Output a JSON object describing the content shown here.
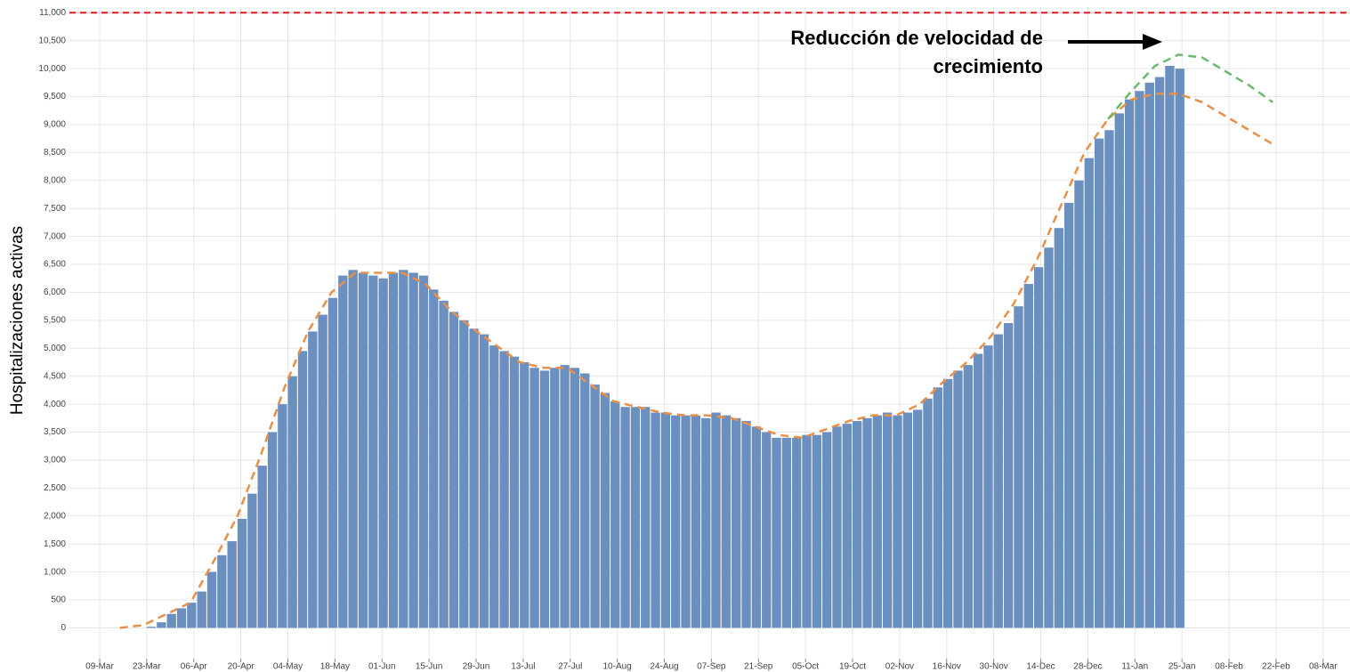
{
  "chart_data": {
    "type": "bar",
    "ylabel": "Hospitalizaciones activas",
    "annotation": [
      "Reducción de velocidad de",
      "crecimiento"
    ],
    "color": "#6b8fbf",
    "grid": true,
    "xlim": [
      "29-Feb",
      "16-Mar"
    ],
    "ylim": [
      -550,
      11100
    ],
    "xticks": [
      "09-Mar",
      "23-Mar",
      "06-Apr",
      "20-Apr",
      "04-May",
      "18-May",
      "01-Jun",
      "15-Jun",
      "29-Jun",
      "13-Jul",
      "27-Jul",
      "10-Aug",
      "24-Aug",
      "07-Sep",
      "21-Sep",
      "05-Oct",
      "19-Oct",
      "02-Nov",
      "16-Nov",
      "30-Nov",
      "14-Dec",
      "28-Dec",
      "11-Jan",
      "25-Jan",
      "08-Feb",
      "22-Feb",
      "08-Mar"
    ],
    "yticks": [
      0,
      500,
      {
        "value": 1000,
        "label": "1,000"
      },
      {
        "value": 1500,
        "label": "1,500"
      },
      {
        "value": 2000,
        "label": "2,000"
      },
      {
        "value": 2500,
        "label": "2,500"
      },
      {
        "value": 3000,
        "label": "3,000"
      },
      {
        "value": 3500,
        "label": "3,500"
      },
      {
        "value": 4000,
        "label": "4,000"
      },
      {
        "value": 4500,
        "label": "4,500"
      },
      {
        "value": 5000,
        "label": "5,000"
      },
      {
        "value": 5500,
        "label": "5,500"
      },
      {
        "value": 6000,
        "label": "6,000"
      },
      {
        "value": 6500,
        "label": "6,500"
      },
      {
        "value": 7000,
        "label": "7,000"
      },
      {
        "value": 7500,
        "label": "7,500"
      },
      {
        "value": 8000,
        "label": "8,000"
      },
      {
        "value": 8500,
        "label": "8,500"
      },
      {
        "value": 9000,
        "label": "9,000"
      },
      {
        "value": 9500,
        "label": "9,500"
      },
      {
        "value": 10000,
        "label": "10,000"
      },
      {
        "value": 10500,
        "label": "10,500"
      },
      {
        "value": 11000,
        "label": "11,000"
      }
    ],
    "hline": {
      "value": 11000,
      "color": "#e41a1c"
    },
    "x": [
      "23-Mar",
      "26-Mar",
      "29-Mar",
      "01-Apr",
      "04-Apr",
      "07-Apr",
      "10-Apr",
      "13-Apr",
      "16-Apr",
      "19-Apr",
      "22-Apr",
      "25-Apr",
      "28-Apr",
      "01-May",
      "04-May",
      "07-May",
      "10-May",
      "13-May",
      "16-May",
      "19-May",
      "22-May",
      "25-May",
      "28-May",
      "31-May",
      "03-Jun",
      "06-Jun",
      "09-Jun",
      "12-Jun",
      "15-Jun",
      "18-Jun",
      "21-Jun",
      "24-Jun",
      "27-Jun",
      "30-Jun",
      "03-Jul",
      "06-Jul",
      "09-Jul",
      "12-Jul",
      "15-Jul",
      "18-Jul",
      "21-Jul",
      "24-Jul",
      "27-Jul",
      "30-Jul",
      "02-Aug",
      "05-Aug",
      "08-Aug",
      "11-Aug",
      "14-Aug",
      "17-Aug",
      "20-Aug",
      "23-Aug",
      "26-Aug",
      "29-Aug",
      "01-Sep",
      "04-Sep",
      "07-Sep",
      "10-Sep",
      "13-Sep",
      "16-Sep",
      "19-Sep",
      "22-Sep",
      "25-Sep",
      "28-Sep",
      "01-Oct",
      "04-Oct",
      "07-Oct",
      "10-Oct",
      "13-Oct",
      "16-Oct",
      "19-Oct",
      "22-Oct",
      "25-Oct",
      "28-Oct",
      "31-Oct",
      "03-Nov",
      "06-Nov",
      "09-Nov",
      "12-Nov",
      "15-Nov",
      "18-Nov",
      "21-Nov",
      "24-Nov",
      "27-Nov",
      "30-Nov",
      "03-Dec",
      "06-Dec",
      "09-Dec",
      "12-Dec",
      "15-Dec",
      "18-Dec",
      "21-Dec",
      "24-Dec",
      "27-Dec",
      "30-Dec",
      "02-Jan",
      "05-Jan",
      "08-Jan",
      "11-Jan",
      "14-Jan",
      "17-Jan",
      "20-Jan",
      "23-Jan"
    ],
    "values": [
      20,
      100,
      250,
      350,
      450,
      650,
      1000,
      1300,
      1550,
      1950,
      2400,
      2900,
      3500,
      4000,
      4500,
      4950,
      5300,
      5600,
      5900,
      6300,
      6400,
      6350,
      6300,
      6250,
      6350,
      6400,
      6350,
      6300,
      6050,
      5850,
      5650,
      5500,
      5350,
      5250,
      5050,
      4950,
      4850,
      4750,
      4650,
      4600,
      4650,
      4700,
      4650,
      4550,
      4350,
      4200,
      4050,
      3950,
      3950,
      3950,
      3850,
      3850,
      3800,
      3800,
      3800,
      3750,
      3850,
      3800,
      3750,
      3700,
      3600,
      3500,
      3400,
      3400,
      3400,
      3450,
      3450,
      3500,
      3600,
      3650,
      3700,
      3750,
      3800,
      3850,
      3800,
      3850,
      3900,
      4100,
      4300,
      4450,
      4600,
      4700,
      4900,
      5050,
      5250,
      5450,
      5750,
      6150,
      6450,
      6800,
      7150,
      7600,
      8000,
      8400,
      8750,
      8900,
      9200,
      9450,
      9600,
      9750,
      9850,
      10050,
      10000
    ],
    "lines": [
      {
        "color": "#e8904a",
        "x": [
          "15-Mar",
          "22-Mar",
          "29-Mar",
          "05-Apr",
          "12-Apr",
          "19-Apr",
          "26-Apr",
          "03-May",
          "10-May",
          "17-May",
          "24-May",
          "31-May",
          "07-Jun",
          "14-Jun",
          "21-Jun",
          "28-Jun",
          "05-Jul",
          "12-Jul",
          "19-Jul",
          "26-Jul",
          "02-Aug",
          "09-Aug",
          "16-Aug",
          "23-Aug",
          "30-Aug",
          "06-Sep",
          "13-Sep",
          "20-Sep",
          "27-Sep",
          "04-Oct",
          "11-Oct",
          "18-Oct",
          "25-Oct",
          "01-Nov",
          "08-Nov",
          "15-Nov",
          "22-Nov",
          "29-Nov",
          "06-Dec",
          "13-Dec",
          "20-Dec",
          "27-Dec",
          "03-Jan",
          "10-Jan",
          "17-Jan",
          "24-Jan",
          "31-Jan",
          "07-Feb",
          "14-Feb",
          "21-Feb"
        ],
        "values": [
          0,
          50,
          250,
          450,
          1200,
          2000,
          3100,
          4300,
          5300,
          6000,
          6350,
          6350,
          6350,
          6150,
          5700,
          5350,
          5050,
          4750,
          4650,
          4650,
          4350,
          4050,
          3950,
          3850,
          3800,
          3800,
          3750,
          3600,
          3450,
          3400,
          3550,
          3700,
          3800,
          3800,
          4000,
          4400,
          4750,
          5200,
          5800,
          6600,
          7550,
          8500,
          9100,
          9450,
          9550,
          9550,
          9400,
          9150,
          8900,
          8650
        ]
      },
      {
        "color": "#6cb86c",
        "x": [
          "03-Jan",
          "10-Jan",
          "17-Jan",
          "24-Jan",
          "31-Jan",
          "07-Feb",
          "14-Feb",
          "21-Feb"
        ],
        "values": [
          9100,
          9600,
          10050,
          10250,
          10200,
          9950,
          9700,
          9400
        ]
      }
    ]
  }
}
